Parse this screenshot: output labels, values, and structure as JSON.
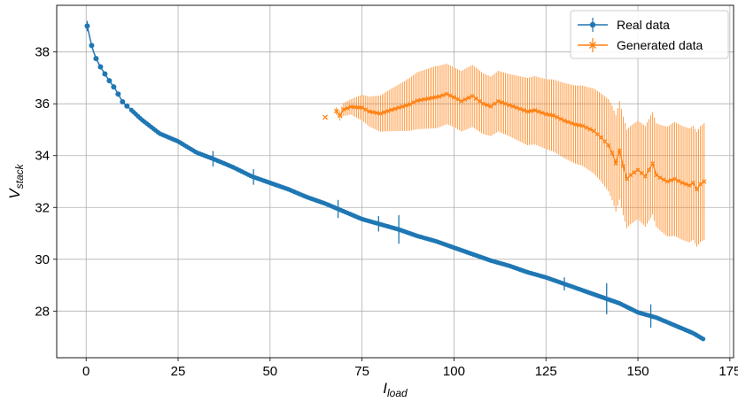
{
  "chart_data": {
    "type": "line",
    "xlabel": {
      "main": "I",
      "sub": "load"
    },
    "ylabel": {
      "main": "V",
      "sub": "stack"
    },
    "xlim": [
      -8,
      176
    ],
    "ylim": [
      26.2,
      39.8
    ],
    "xticks": [
      0,
      25,
      50,
      75,
      100,
      125,
      150,
      175
    ],
    "yticks": [
      28,
      30,
      32,
      34,
      36,
      38
    ],
    "grid": true,
    "legend_position": "top-right",
    "colors": {
      "real": "#1f77b4",
      "generated": "#ff7f0e",
      "grid": "#b0b0b0"
    },
    "series": [
      {
        "name": "Real data",
        "marker": "circle",
        "key_points": [
          [
            0.3,
            39.0
          ],
          [
            1.5,
            38.25
          ],
          [
            2.5,
            37.8
          ],
          [
            4,
            37.4
          ],
          [
            6,
            36.95
          ],
          [
            8,
            36.55
          ],
          [
            10,
            36.05
          ],
          [
            12,
            35.8
          ],
          [
            15,
            35.4
          ],
          [
            20,
            34.85
          ],
          [
            25,
            34.55
          ],
          [
            30,
            34.12
          ],
          [
            35,
            33.85
          ],
          [
            40,
            33.55
          ],
          [
            45,
            33.2
          ],
          [
            50,
            32.95
          ],
          [
            55,
            32.7
          ],
          [
            60,
            32.4
          ],
          [
            65,
            32.15
          ],
          [
            70,
            31.85
          ],
          [
            75,
            31.55
          ],
          [
            80,
            31.35
          ],
          [
            85,
            31.15
          ],
          [
            90,
            30.9
          ],
          [
            95,
            30.7
          ],
          [
            100,
            30.45
          ],
          [
            105,
            30.2
          ],
          [
            110,
            29.95
          ],
          [
            115,
            29.75
          ],
          [
            120,
            29.5
          ],
          [
            125,
            29.3
          ],
          [
            130,
            29.05
          ],
          [
            135,
            28.8
          ],
          [
            140,
            28.55
          ],
          [
            145,
            28.3
          ],
          [
            150,
            27.95
          ],
          [
            155,
            27.75
          ],
          [
            160,
            27.45
          ],
          [
            165,
            27.15
          ],
          [
            168,
            26.9
          ]
        ],
        "error_spikes": [
          [
            0.3,
            0.2
          ],
          [
            34.5,
            0.3
          ],
          [
            45.5,
            0.3
          ],
          [
            68.5,
            0.35
          ],
          [
            79.5,
            0.3
          ],
          [
            85,
            0.55
          ],
          [
            130,
            0.25
          ],
          [
            141.5,
            0.6
          ],
          [
            153.5,
            0.45
          ]
        ]
      },
      {
        "name": "Generated data",
        "marker": "x",
        "key_points": [
          [
            65,
            35.48
          ],
          [
            67.5,
            35.8
          ],
          [
            69,
            35.55
          ],
          [
            70,
            35.78
          ],
          [
            72,
            35.88
          ],
          [
            75,
            35.85
          ],
          [
            77,
            35.7
          ],
          [
            80,
            35.62
          ],
          [
            82,
            35.72
          ],
          [
            85,
            35.85
          ],
          [
            88,
            35.98
          ],
          [
            90,
            36.12
          ],
          [
            93,
            36.2
          ],
          [
            96,
            36.28
          ],
          [
            98,
            36.38
          ],
          [
            100,
            36.25
          ],
          [
            102,
            36.1
          ],
          [
            105,
            36.3
          ],
          [
            108,
            36.0
          ],
          [
            110,
            35.9
          ],
          [
            112,
            36.1
          ],
          [
            115,
            35.95
          ],
          [
            118,
            35.8
          ],
          [
            120,
            35.7
          ],
          [
            122,
            35.75
          ],
          [
            125,
            35.6
          ],
          [
            127,
            35.55
          ],
          [
            130,
            35.35
          ],
          [
            133,
            35.2
          ],
          [
            135,
            35.15
          ],
          [
            138,
            34.95
          ],
          [
            140,
            34.7
          ],
          [
            142,
            34.4
          ],
          [
            143,
            34.1
          ],
          [
            144,
            33.7
          ],
          [
            145,
            34.2
          ],
          [
            146,
            33.6
          ],
          [
            147,
            33.1
          ],
          [
            148,
            33.25
          ],
          [
            150,
            33.45
          ],
          [
            152,
            33.2
          ],
          [
            154,
            33.7
          ],
          [
            155,
            33.25
          ],
          [
            156,
            33.15
          ],
          [
            158,
            33.0
          ],
          [
            160,
            33.1
          ],
          [
            162,
            32.95
          ],
          [
            164,
            32.85
          ],
          [
            165,
            32.95
          ],
          [
            166,
            32.7
          ],
          [
            167,
            32.9
          ],
          [
            168,
            33.0
          ]
        ],
        "error_spans": [
          [
            65,
            0.0
          ],
          [
            68,
            0.15
          ],
          [
            70,
            0.25
          ],
          [
            72,
            0.3
          ],
          [
            75,
            0.5
          ],
          [
            80,
            0.7
          ],
          [
            85,
            0.9
          ],
          [
            90,
            1.1
          ],
          [
            95,
            1.2
          ],
          [
            100,
            1.15
          ],
          [
            105,
            1.2
          ],
          [
            110,
            1.15
          ],
          [
            115,
            1.2
          ],
          [
            120,
            1.3
          ],
          [
            125,
            1.35
          ],
          [
            130,
            1.45
          ],
          [
            135,
            1.55
          ],
          [
            140,
            1.7
          ],
          [
            145,
            1.9
          ],
          [
            150,
            1.9
          ],
          [
            155,
            2.0
          ],
          [
            160,
            2.2
          ],
          [
            165,
            2.2
          ],
          [
            168,
            2.25
          ]
        ]
      }
    ]
  }
}
